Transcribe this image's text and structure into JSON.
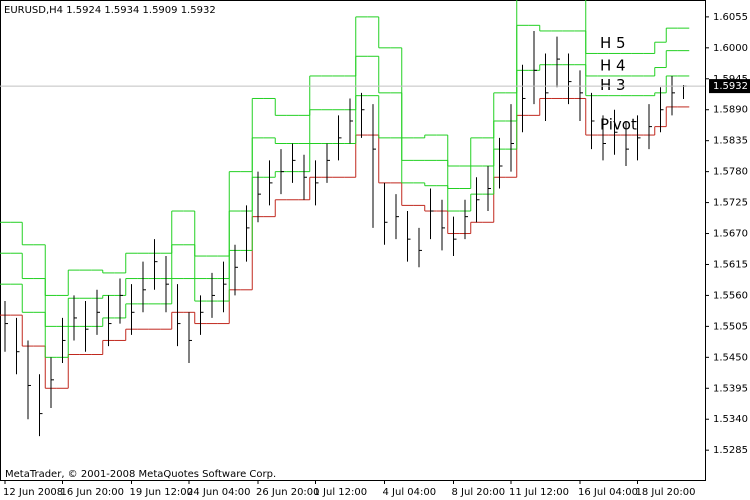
{
  "chart_data": {
    "type": "ohlc",
    "title": "EURUSD,H4  1.5924 1.5934 1.5909 1.5932",
    "footer": "MetaTrader, © 2001-2008 MetaQuotes Software Corp.",
    "categories": [
      "12 Jun 2008",
      null,
      null,
      null,
      null,
      "16 Jun 20:00",
      null,
      null,
      null,
      null,
      null,
      "19 Jun 12:00",
      null,
      null,
      null,
      null,
      "24 Jun 04:00",
      null,
      null,
      null,
      null,
      null,
      "26 Jun 20:00",
      null,
      null,
      null,
      null,
      "1 Jul 12:00",
      null,
      null,
      null,
      null,
      null,
      "4 Jul 04:00",
      null,
      null,
      null,
      null,
      null,
      "8 Jul 20:00",
      null,
      null,
      null,
      null,
      "11 Jul 12:00",
      null,
      null,
      null,
      null,
      null,
      "16 Jul 04:00",
      null,
      null,
      null,
      null,
      "18 Jul 20:00",
      null,
      null,
      null,
      null
    ],
    "high": [
      1.555,
      1.552,
      1.548,
      1.542,
      1.545,
      1.552,
      1.556,
      1.555,
      1.557,
      1.556,
      1.559,
      1.558,
      1.562,
      1.566,
      1.563,
      1.558,
      1.553,
      1.556,
      1.56,
      1.562,
      1.565,
      1.572,
      1.578,
      1.58,
      1.582,
      1.583,
      1.581,
      1.58,
      1.583,
      1.588,
      1.591,
      1.592,
      1.59,
      1.576,
      1.574,
      1.571,
      1.568,
      1.575,
      1.573,
      1.57,
      1.573,
      1.577,
      1.579,
      1.584,
      1.59,
      1.597,
      1.603,
      1.599,
      1.602,
      1.599,
      1.596,
      1.592,
      1.588,
      1.589,
      1.587,
      1.588,
      1.59,
      1.593,
      1.595,
      1.5934
    ],
    "low": [
      1.546,
      1.542,
      1.534,
      1.531,
      1.536,
      1.544,
      1.548,
      1.546,
      1.549,
      1.547,
      1.551,
      1.549,
      1.553,
      1.557,
      1.553,
      1.547,
      1.544,
      1.549,
      1.552,
      1.553,
      1.556,
      1.562,
      1.569,
      1.572,
      1.574,
      1.576,
      1.573,
      1.572,
      1.576,
      1.58,
      1.583,
      1.584,
      1.568,
      1.565,
      1.566,
      1.562,
      1.561,
      1.566,
      1.564,
      1.563,
      1.566,
      1.569,
      1.571,
      1.575,
      1.578,
      1.585,
      1.59,
      1.587,
      1.593,
      1.59,
      1.587,
      1.582,
      1.58,
      1.581,
      1.579,
      1.58,
      1.582,
      1.585,
      1.588,
      1.5909
    ],
    "close": [
      1.551,
      1.546,
      1.54,
      1.535,
      1.541,
      1.548,
      1.552,
      1.55,
      1.553,
      1.551,
      1.556,
      1.553,
      1.557,
      1.562,
      1.558,
      1.551,
      1.548,
      1.553,
      1.556,
      1.558,
      1.561,
      1.568,
      1.574,
      1.576,
      1.578,
      1.58,
      1.577,
      1.576,
      1.58,
      1.584,
      1.587,
      1.589,
      1.582,
      1.569,
      1.57,
      1.566,
      1.564,
      1.571,
      1.568,
      1.566,
      1.57,
      1.573,
      1.575,
      1.579,
      1.583,
      1.591,
      1.596,
      1.592,
      1.598,
      1.594,
      1.592,
      1.587,
      1.583,
      1.585,
      1.582,
      1.584,
      1.586,
      1.589,
      1.592,
      1.5932
    ],
    "color": "#000000",
    "series": [
      {
        "name": "Pivot",
        "color": "#c0281e",
        "values": [
          1.5525,
          1.5525,
          1.547,
          1.547,
          1.5395,
          1.5395,
          1.5455,
          1.5455,
          1.5455,
          1.548,
          1.548,
          1.55,
          1.55,
          1.55,
          1.55,
          1.553,
          1.553,
          1.551,
          1.551,
          1.551,
          1.557,
          1.557,
          1.57,
          1.57,
          1.573,
          1.573,
          1.573,
          1.577,
          1.577,
          1.577,
          1.577,
          1.5845,
          1.5845,
          1.576,
          1.576,
          1.572,
          1.572,
          1.571,
          1.571,
          1.567,
          1.567,
          1.569,
          1.569,
          1.577,
          1.577,
          1.588,
          1.588,
          1.591,
          1.591,
          1.591,
          1.591,
          1.5845,
          1.5845,
          1.5845,
          1.5845,
          1.5845,
          1.5845,
          1.586,
          1.5895,
          1.5895
        ]
      },
      {
        "name": "H 3",
        "color": "#22d022",
        "values": [
          1.558,
          1.558,
          1.553,
          1.553,
          1.545,
          1.545,
          1.5505,
          1.5505,
          1.5505,
          1.552,
          1.552,
          1.5545,
          1.5545,
          1.5545,
          1.5545,
          1.559,
          1.559,
          1.555,
          1.555,
          1.555,
          1.564,
          1.564,
          1.577,
          1.577,
          1.578,
          1.578,
          1.578,
          1.583,
          1.583,
          1.583,
          1.583,
          1.5915,
          1.5915,
          1.584,
          1.584,
          1.576,
          1.576,
          1.5755,
          1.5755,
          1.571,
          1.571,
          1.574,
          1.574,
          1.582,
          1.582,
          1.596,
          1.596,
          1.597,
          1.597,
          1.597,
          1.597,
          1.5915,
          1.5915,
          1.5915,
          1.5915,
          1.5915,
          1.5915,
          1.592,
          1.595,
          1.595
        ]
      },
      {
        "name": "H 4",
        "color": "#22d022",
        "values": [
          1.5635,
          1.5635,
          1.559,
          1.559,
          1.5505,
          1.5505,
          1.5555,
          1.5555,
          1.5555,
          1.556,
          1.556,
          1.559,
          1.559,
          1.559,
          1.559,
          1.565,
          1.565,
          1.559,
          1.559,
          1.559,
          1.571,
          1.571,
          1.584,
          1.584,
          1.583,
          1.583,
          1.583,
          1.589,
          1.589,
          1.589,
          1.589,
          1.5985,
          1.5985,
          1.592,
          1.592,
          1.58,
          1.58,
          1.58,
          1.58,
          1.575,
          1.575,
          1.579,
          1.579,
          1.587,
          1.587,
          1.604,
          1.604,
          1.603,
          1.603,
          1.603,
          1.603,
          1.595,
          1.595,
          1.595,
          1.595,
          1.595,
          1.595,
          1.5965,
          1.5995,
          1.5995
        ]
      },
      {
        "name": "H 5",
        "color": "#22d022",
        "values": [
          1.569,
          1.569,
          1.565,
          1.565,
          1.556,
          1.556,
          1.5605,
          1.5605,
          1.5605,
          1.56,
          1.56,
          1.5635,
          1.5635,
          1.5635,
          1.5635,
          1.571,
          1.571,
          1.563,
          1.563,
          1.563,
          1.578,
          1.578,
          1.591,
          1.591,
          1.588,
          1.588,
          1.588,
          1.595,
          1.595,
          1.595,
          1.595,
          1.6055,
          1.6055,
          1.6,
          1.6,
          1.584,
          1.584,
          1.5845,
          1.5845,
          1.579,
          1.579,
          1.584,
          1.584,
          1.592,
          1.592,
          1.611,
          1.611,
          1.609,
          1.609,
          1.609,
          1.609,
          1.599,
          1.599,
          1.599,
          1.599,
          1.599,
          1.599,
          1.601,
          1.6035,
          1.6035
        ]
      }
    ],
    "last_price": 1.5932,
    "ylim": [
      1.5232,
      1.6085
    ],
    "yticks": [
      1.6055,
      {
        "value": 1.6,
        "label": "1.6000"
      },
      1.5945,
      {
        "value": 1.589,
        "label": "1.5890"
      },
      1.5835,
      {
        "value": 1.578,
        "label": "1.5780"
      },
      1.5725,
      {
        "value": 1.567,
        "label": "1.5670"
      },
      1.5615,
      {
        "value": 1.556,
        "label": "1.5560"
      },
      1.5505,
      {
        "value": 1.545,
        "label": "1.5450"
      },
      1.5395,
      {
        "value": 1.534,
        "label": "1.5340"
      },
      1.5285
    ]
  }
}
